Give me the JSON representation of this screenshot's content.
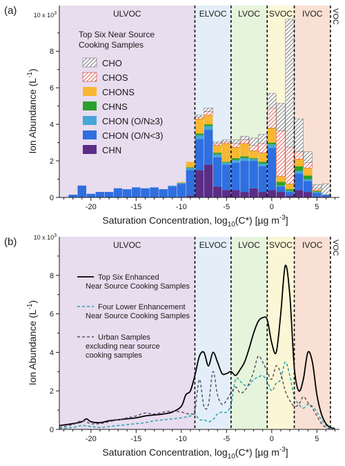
{
  "chart_data": [
    {
      "type": "bar",
      "panel_label": "(a)",
      "xlabel_main": "Saturation Concentration, log",
      "xlabel_sub": "10",
      "xlabel_tail": "(C*) [µg m",
      "xlabel_sup": "-3",
      "xlabel_end": "]",
      "ylabel_main": "Ion Abundance (L",
      "ylabel_sup": "-1",
      "ylabel_end": ")",
      "y_multiplier": "10 x 10",
      "y_multiplier_sup": "3",
      "xlim": [
        -23.5,
        7.5
      ],
      "ylim": [
        0,
        10.5
      ],
      "x_ticks": [
        "-20",
        "-15",
        "-10",
        "-5",
        "0",
        "5"
      ],
      "x_tick_values": [
        -20,
        -15,
        -10,
        -5,
        0,
        5
      ],
      "y_ticks": [
        "0",
        "2",
        "4",
        "6",
        "8"
      ],
      "y_tick_values": [
        0,
        2,
        4,
        6,
        8
      ],
      "legend_title": [
        "Top Six Near Source",
        "Cooking Samples"
      ],
      "legend_placement": "top-left",
      "volatility_regions": [
        {
          "name": "ULVOC",
          "x0": -23.5,
          "x1": -8.5,
          "color": "#e8dcef"
        },
        {
          "name": "ELVOC",
          "x0": -8.5,
          "x1": -4.5,
          "color": "#e3eef9"
        },
        {
          "name": "LVOC",
          "x0": -4.5,
          "x1": -0.5,
          "color": "#e6f4dc"
        },
        {
          "name": "SVOC",
          "x0": -0.5,
          "x1": 2.5,
          "color": "#fbf7d6"
        },
        {
          "name": "IVOC",
          "x0": 2.5,
          "x1": 6.5,
          "color": "#f9e0d4"
        },
        {
          "name": "VOC",
          "x0": 6.5,
          "x1": 7.5,
          "color": "#ffffff"
        }
      ],
      "categories": [
        -22,
        -21,
        -20,
        -19,
        -18,
        -17,
        -16,
        -15,
        -14,
        -13,
        -12,
        -11,
        -10,
        -9,
        -8,
        -7,
        -6,
        -5,
        -4,
        -3,
        -2,
        -1,
        0,
        1,
        2,
        3,
        4,
        5,
        6
      ],
      "series": [
        {
          "name": "CHN",
          "color": "#5b2d86",
          "pattern": "none",
          "values": [
            0,
            0,
            0,
            0,
            0,
            0,
            0,
            0,
            0,
            0,
            0,
            0,
            0,
            0.1,
            1.5,
            1.8,
            0.6,
            0.4,
            0.4,
            0.3,
            0.5,
            0.3,
            0.4,
            0.3,
            0.1,
            0.4,
            0.3,
            0.05,
            0.05
          ]
        },
        {
          "name": "CHON (O/N<3)",
          "color": "#2f6fe0",
          "pattern": "none",
          "values": [
            0.15,
            0.65,
            0.2,
            0.3,
            0.3,
            0.5,
            0.45,
            0.55,
            0.5,
            0.55,
            0.45,
            0.6,
            0.75,
            1.4,
            1.7,
            1.9,
            1.6,
            1.4,
            1.5,
            1.7,
            1.5,
            1.4,
            2.3,
            0.3,
            0.2,
            0.9,
            0.6,
            0.2,
            0.1
          ]
        },
        {
          "name": "CHON (O/N≥3)",
          "color": "#45a6d8",
          "pattern": "none",
          "values": [
            0,
            0,
            0,
            0,
            0,
            0,
            0,
            0,
            0,
            0,
            0,
            0.05,
            0.05,
            0.1,
            0.2,
            0.2,
            0.15,
            0.1,
            0.15,
            0.15,
            0.1,
            0.15,
            0.2,
            0.05,
            0.05,
            0.15,
            0.1,
            0.05,
            0
          ]
        },
        {
          "name": "CHNS",
          "color": "#2ca02c",
          "pattern": "none",
          "values": [
            0,
            0,
            0,
            0,
            0,
            0,
            0,
            0,
            0,
            0,
            0,
            0,
            0,
            0.05,
            0.1,
            0.1,
            0.1,
            0.05,
            0.1,
            0.1,
            0.05,
            0.1,
            0.1,
            0.2,
            0.1,
            0.25,
            0.2,
            0.05,
            0
          ]
        },
        {
          "name": "CHONS",
          "color": "#f7b731",
          "pattern": "none",
          "values": [
            0,
            0,
            0,
            0,
            0,
            0,
            0,
            0,
            0,
            0,
            0,
            0,
            0.05,
            0.3,
            0.8,
            0.5,
            0.4,
            1.0,
            0.6,
            0.7,
            0.4,
            0.5,
            0.8,
            0.3,
            0.3,
            0.4,
            0.4,
            0.05,
            0
          ]
        },
        {
          "name": "CHOS",
          "color": "#d43a2f",
          "pattern": "hatch-red",
          "values": [
            0,
            0,
            0,
            0,
            0,
            0,
            0,
            0,
            0,
            0,
            0,
            0,
            0,
            0,
            0.1,
            0.2,
            0.1,
            0.1,
            0.2,
            0.2,
            0.3,
            0.5,
            1.1,
            2.5,
            2.0,
            0.4,
            0.3,
            0.1,
            0
          ]
        },
        {
          "name": "CHO",
          "color": "#6f6f6f",
          "pattern": "hatch-gray",
          "values": [
            0,
            0,
            0,
            0,
            0,
            0,
            0,
            0,
            0,
            0,
            0,
            0,
            0,
            0,
            0.1,
            0.2,
            0.1,
            0.1,
            0.2,
            0.2,
            0.4,
            0.5,
            0.8,
            1.5,
            7.0,
            1.8,
            0.6,
            0.2,
            0.6
          ]
        }
      ]
    },
    {
      "type": "line",
      "panel_label": "(b)",
      "xlabel_main": "Saturation Concentration, log",
      "xlabel_sub": "10",
      "xlabel_tail": "(C*) [µg m",
      "xlabel_sup": "-3",
      "xlabel_end": "]",
      "ylabel_main": "Ion Abundance (L",
      "ylabel_sup": "-1",
      "ylabel_end": ")",
      "y_multiplier": "10 x 10",
      "y_multiplier_sup": "3",
      "xlim": [
        -23.5,
        7.5
      ],
      "ylim": [
        0,
        10
      ],
      "x_ticks": [
        "-20",
        "-15",
        "-10",
        "-5",
        "0",
        "5"
      ],
      "x_tick_values": [
        -20,
        -15,
        -10,
        -5,
        0,
        5
      ],
      "y_ticks": [
        "0",
        "2",
        "4",
        "6",
        "8"
      ],
      "y_tick_values": [
        0,
        2,
        4,
        6,
        8
      ],
      "legend_placement": "top-left",
      "volatility_regions": [
        {
          "name": "ULVOC",
          "x0": -23.5,
          "x1": -8.5,
          "color": "#e8dcef"
        },
        {
          "name": "ELVOC",
          "x0": -8.5,
          "x1": -4.5,
          "color": "#e3eef9"
        },
        {
          "name": "LVOC",
          "x0": -4.5,
          "x1": -0.5,
          "color": "#e6f4dc"
        },
        {
          "name": "SVOC",
          "x0": -0.5,
          "x1": 2.5,
          "color": "#fbf7d6"
        },
        {
          "name": "IVOC",
          "x0": 2.5,
          "x1": 6.5,
          "color": "#f9e0d4"
        },
        {
          "name": "VOC",
          "x0": 6.5,
          "x1": 7.5,
          "color": "#ffffff"
        }
      ],
      "series": [
        {
          "name": [
            "Top Six Enhanced",
            "Near Source Cooking Samples"
          ],
          "color": "#000000",
          "dash": "solid",
          "x": [
            -23.5,
            -22,
            -21,
            -20.5,
            -20,
            -19,
            -18,
            -17,
            -16,
            -15,
            -14,
            -13,
            -12,
            -11,
            -10,
            -9.5,
            -9,
            -8.5,
            -8,
            -7.5,
            -7,
            -6.5,
            -6,
            -5.5,
            -5,
            -4.5,
            -4,
            -3.5,
            -3,
            -2.5,
            -2,
            -1.5,
            -1,
            -0.5,
            0,
            0.5,
            1,
            1.5,
            2,
            2.5,
            3,
            3.5,
            4,
            4.5,
            5,
            5.5,
            6,
            6.5,
            7
          ],
          "y": [
            0.2,
            0.3,
            0.4,
            0.55,
            0.4,
            0.35,
            0.45,
            0.5,
            0.55,
            0.6,
            0.7,
            0.75,
            0.8,
            0.9,
            1.2,
            1.8,
            2.0,
            2.8,
            3.8,
            4.0,
            3.3,
            4.0,
            3.5,
            2.9,
            2.9,
            3.0,
            2.8,
            3.1,
            3.5,
            4.2,
            5.0,
            5.6,
            5.8,
            5.7,
            4.5,
            4.0,
            6.0,
            8.5,
            7.0,
            3.2,
            2.0,
            2.6,
            4.0,
            3.5,
            1.8,
            0.8,
            0.3,
            0.1,
            0.05
          ]
        },
        {
          "name": [
            "Four Lower Enhancement",
            "Near Source Cooking Samples"
          ],
          "color": "#1fa3a8",
          "dash": "4 3",
          "x": [
            -23.5,
            -22,
            -21,
            -20,
            -19,
            -18,
            -17,
            -16,
            -15,
            -14,
            -13,
            -12,
            -11,
            -10,
            -9,
            -8.5,
            -8,
            -7.5,
            -7,
            -6.5,
            -6,
            -5.5,
            -5,
            -4.5,
            -4,
            -3.5,
            -3,
            -2.5,
            -2,
            -1.5,
            -1,
            -0.5,
            0,
            0.5,
            1,
            1.5,
            2,
            2.5,
            3,
            3.5,
            4,
            4.5,
            5,
            5.5,
            6,
            6.5,
            7
          ],
          "y": [
            0.05,
            0.1,
            0.2,
            0.15,
            0.1,
            0.15,
            0.2,
            0.25,
            0.3,
            0.35,
            0.45,
            0.5,
            0.55,
            0.6,
            0.7,
            0.8,
            0.5,
            0.5,
            0.4,
            0.5,
            0.8,
            0.9,
            0.9,
            1.3,
            2.6,
            2.5,
            2.3,
            2.3,
            2.6,
            2.7,
            2.8,
            2.5,
            2.0,
            2.4,
            2.6,
            3.5,
            2.8,
            1.7,
            1.3,
            1.1,
            1.3,
            1.2,
            0.9,
            0.5,
            0.2,
            0.05,
            0.02
          ]
        },
        {
          "name": [
            "Urban Samples",
            "excluding near source",
            "cooking samples"
          ],
          "color": "#5d4f6e",
          "dash": "4 3",
          "x": [
            -23.5,
            -22,
            -21,
            -20,
            -19,
            -18,
            -17,
            -16,
            -15,
            -14,
            -13,
            -12,
            -11,
            -10,
            -9,
            -8.5,
            -8,
            -7.5,
            -7,
            -6.5,
            -6,
            -5.5,
            -5,
            -4.5,
            -4,
            -3.5,
            -3,
            -2.5,
            -2,
            -1.5,
            -1,
            -0.5,
            0,
            0.5,
            1,
            1.5,
            2,
            2.5,
            3,
            3.5,
            4,
            4.5,
            5,
            5.5,
            6,
            6.5,
            7
          ],
          "y": [
            0.1,
            0.25,
            0.45,
            0.3,
            0.3,
            0.4,
            0.5,
            0.6,
            0.7,
            0.85,
            0.8,
            0.9,
            0.95,
            0.9,
            0.8,
            1.0,
            2.6,
            1.2,
            1.3,
            3.0,
            1.8,
            1.3,
            1.5,
            1.9,
            2.2,
            1.9,
            2.0,
            2.4,
            3.0,
            3.8,
            3.5,
            3.0,
            2.6,
            3.3,
            2.9,
            2.0,
            1.5,
            1.2,
            1.3,
            1.7,
            1.4,
            1.1,
            0.7,
            0.3,
            0.1,
            0.05,
            0.02
          ]
        }
      ]
    }
  ]
}
